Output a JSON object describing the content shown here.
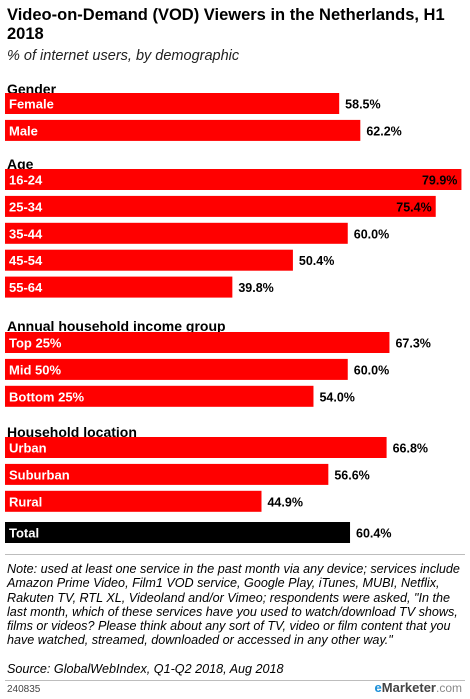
{
  "chart_data": {
    "type": "bar",
    "orientation": "horizontal",
    "title": "Video-on-Demand (VOD) Viewers in the Netherlands, H1 2018",
    "subtitle": "% of internet users, by demographic",
    "xlim": [
      0,
      80
    ],
    "grid": false,
    "value_suffix": "%",
    "groups": [
      {
        "name": "Gender",
        "bars": [
          {
            "label": "Female",
            "value": 58.5
          },
          {
            "label": "Male",
            "value": 62.2
          }
        ]
      },
      {
        "name": "Age",
        "bars": [
          {
            "label": "16-24",
            "value": 79.9
          },
          {
            "label": "25-34",
            "value": 75.4
          },
          {
            "label": "35-44",
            "value": 60.0
          },
          {
            "label": "45-54",
            "value": 50.4
          },
          {
            "label": "55-64",
            "value": 39.8
          }
        ]
      },
      {
        "name": "Annual household income group",
        "bars": [
          {
            "label": "Top 25%",
            "value": 67.3
          },
          {
            "label": "Mid 50%",
            "value": 60.0
          },
          {
            "label": "Bottom 25%",
            "value": 54.0
          }
        ]
      },
      {
        "name": "Household location",
        "bars": [
          {
            "label": "Urban",
            "value": 66.8
          },
          {
            "label": "Suburban",
            "value": 56.6
          },
          {
            "label": "Rural",
            "value": 44.9
          }
        ]
      }
    ],
    "total": {
      "label": "Total",
      "value": 60.4
    },
    "colors": {
      "bar": "#ff0000",
      "total": "#000000",
      "label_text": "#ffffff"
    }
  },
  "note": "Note: used at least one service in the past month via any device; services include Amazon Prime Video, Film1 VOD service, Google Play, iTunes, MUBI, Netflix, Rakuten TV, RTL XL, Videoland and/or Vimeo; respondents were asked, \"In the last month, which of these services have you used to watch/download TV shows, films or videos? Please think about any sort of TV, video or film content that you have watched, streamed, downloaded or accessed in any other way.\"",
  "source": "Source: GlobalWebIndex, Q1-Q2 2018, Aug 2018",
  "chart_id": "240835",
  "brand": {
    "e": "e",
    "name": "Marketer",
    "suffix": "com"
  }
}
